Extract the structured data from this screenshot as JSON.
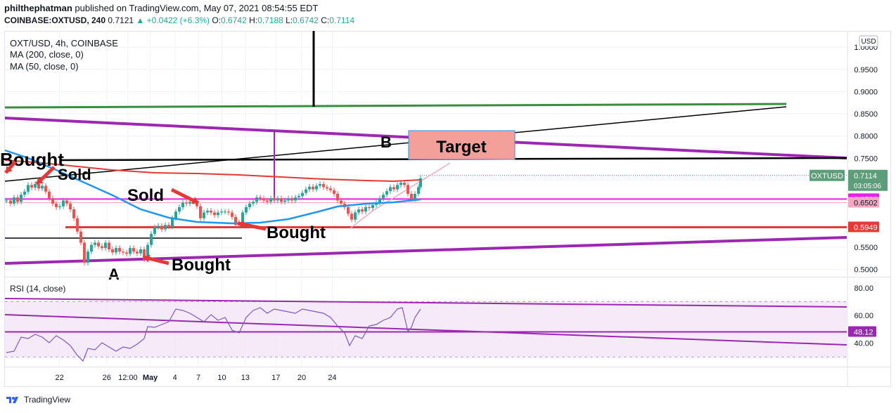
{
  "publisher": {
    "user": "philthephatman",
    "text": "published on TradingView.com, May 07, 2021 08:54:55 EDT"
  },
  "ticker_line": {
    "symbol": "COINBASE:OXTUSD, 240",
    "last": "0.7121",
    "change": "▲ +0.0422 (+6.3%)",
    "o_label": "O:",
    "o": "0.6742",
    "h_label": "H:",
    "h": "0.7188",
    "l_label": "L:",
    "l": "0.6742",
    "c_label": "C:",
    "c": "0.7114"
  },
  "legend": {
    "title": "OXT/USD, 4h, COINBASE",
    "ma200": "MA (200, close, 0)",
    "ma50": "MA (50, close, 0)"
  },
  "currency": "USD",
  "rsi_label": "RSI (14, close)",
  "footer": "TradingView",
  "chart_data": {
    "type": "candlestick",
    "price_axis": {
      "ticks": [
        1.0,
        0.95,
        0.9,
        0.85,
        0.8,
        0.75,
        0.7,
        0.65,
        0.6,
        0.55,
        0.5
      ],
      "tick_labels": [
        "1.0000",
        "0.9500",
        "0.9000",
        "0.8500",
        "0.8000",
        "0.7500",
        "0.7000",
        "0.6500",
        "0.6000",
        "0.5500",
        "0.5000"
      ],
      "range": [
        0.485,
        1.035
      ]
    },
    "time_axis": {
      "range_days": [
        19.4,
        25.5
      ],
      "ticks": [
        {
          "d": 21.99,
          "label": "22"
        },
        {
          "d": 24.0,
          "label": "26"
        },
        {
          "d": 24.9,
          "label": "12:00"
        },
        {
          "d": 25.85,
          "label": "May"
        },
        {
          "d": 26.9,
          "label": "4"
        },
        {
          "d": 27.9,
          "label": "7"
        },
        {
          "d": 28.9,
          "label": "10"
        },
        {
          "d": 29.9,
          "label": "13"
        },
        {
          "d": 31.2,
          "label": "17"
        },
        {
          "d": 32.3,
          "label": "20"
        },
        {
          "d": 33.6,
          "label": "24"
        }
      ]
    },
    "price_badges": [
      {
        "label": "OXTUSD",
        "value": "0.7114",
        "sub": "03:05:06",
        "price": 0.7114,
        "color": "#5c9e7a"
      },
      {
        "label": "",
        "value": "0.6582",
        "price": 0.6582,
        "color": "#e91ee8"
      },
      {
        "label": "",
        "value": "0.6502",
        "price": 0.6502,
        "color": "#f7a8c0"
      },
      {
        "label": "",
        "value": "0.5949",
        "price": 0.5949,
        "color": "#e53935"
      }
    ],
    "rsi": {
      "ticks": [
        80,
        60,
        40
      ],
      "tick_labels": [
        "80.00",
        "60.00",
        "40.00"
      ],
      "range": [
        23,
        87
      ],
      "badge": "48.12",
      "badge_value": 48.12,
      "bands": [
        70,
        30
      ]
    },
    "annotations": [
      {
        "text": "Sold",
        "kind": "label"
      },
      {
        "text": "Sold",
        "kind": "label"
      },
      {
        "text": "Bought",
        "kind": "label"
      },
      {
        "text": "Bought",
        "kind": "label"
      },
      {
        "text": "Bought",
        "kind": "label"
      },
      {
        "text": "Target",
        "kind": "box"
      },
      {
        "text": "B",
        "kind": "label"
      },
      {
        "text": "A",
        "kind": "label"
      }
    ],
    "colors": {
      "up": "#26a69a",
      "down": "#ef5350",
      "ma200": "#e53935",
      "ma50": "#2196f3",
      "channel": "#9c27b0",
      "support_green": "#388e3c",
      "rsi_line": "#7e57c2"
    }
  }
}
